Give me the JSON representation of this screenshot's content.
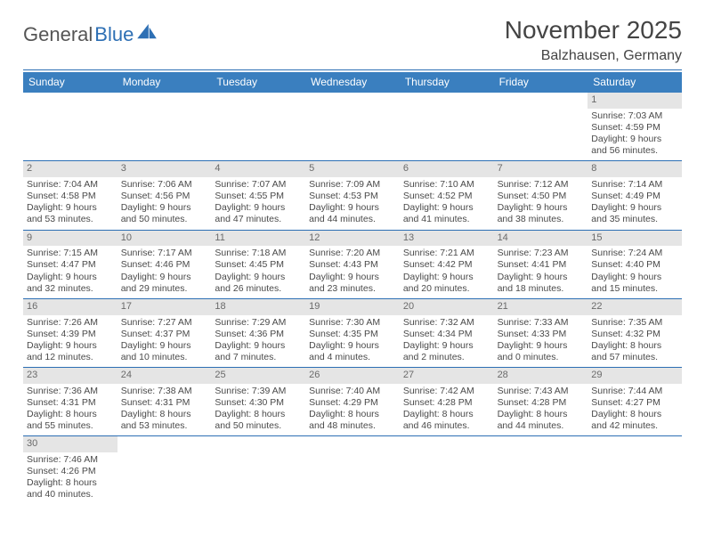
{
  "logo": {
    "word1": "General",
    "word2": "Blue"
  },
  "title": {
    "month": "November 2025",
    "location": "Balzhausen, Germany"
  },
  "colors": {
    "header_bg": "#3a7fbf",
    "border": "#2d6fb4",
    "daynum_bg": "#e5e5e5",
    "text": "#4a4a4a"
  },
  "dayNames": [
    "Sunday",
    "Monday",
    "Tuesday",
    "Wednesday",
    "Thursday",
    "Friday",
    "Saturday"
  ],
  "weeks": [
    [
      {
        "empty": true
      },
      {
        "empty": true
      },
      {
        "empty": true
      },
      {
        "empty": true
      },
      {
        "empty": true
      },
      {
        "empty": true
      },
      {
        "day": "1",
        "sunrise": "Sunrise: 7:03 AM",
        "sunset": "Sunset: 4:59 PM",
        "dl1": "Daylight: 9 hours",
        "dl2": "and 56 minutes."
      }
    ],
    [
      {
        "day": "2",
        "sunrise": "Sunrise: 7:04 AM",
        "sunset": "Sunset: 4:58 PM",
        "dl1": "Daylight: 9 hours",
        "dl2": "and 53 minutes."
      },
      {
        "day": "3",
        "sunrise": "Sunrise: 7:06 AM",
        "sunset": "Sunset: 4:56 PM",
        "dl1": "Daylight: 9 hours",
        "dl2": "and 50 minutes."
      },
      {
        "day": "4",
        "sunrise": "Sunrise: 7:07 AM",
        "sunset": "Sunset: 4:55 PM",
        "dl1": "Daylight: 9 hours",
        "dl2": "and 47 minutes."
      },
      {
        "day": "5",
        "sunrise": "Sunrise: 7:09 AM",
        "sunset": "Sunset: 4:53 PM",
        "dl1": "Daylight: 9 hours",
        "dl2": "and 44 minutes."
      },
      {
        "day": "6",
        "sunrise": "Sunrise: 7:10 AM",
        "sunset": "Sunset: 4:52 PM",
        "dl1": "Daylight: 9 hours",
        "dl2": "and 41 minutes."
      },
      {
        "day": "7",
        "sunrise": "Sunrise: 7:12 AM",
        "sunset": "Sunset: 4:50 PM",
        "dl1": "Daylight: 9 hours",
        "dl2": "and 38 minutes."
      },
      {
        "day": "8",
        "sunrise": "Sunrise: 7:14 AM",
        "sunset": "Sunset: 4:49 PM",
        "dl1": "Daylight: 9 hours",
        "dl2": "and 35 minutes."
      }
    ],
    [
      {
        "day": "9",
        "sunrise": "Sunrise: 7:15 AM",
        "sunset": "Sunset: 4:47 PM",
        "dl1": "Daylight: 9 hours",
        "dl2": "and 32 minutes."
      },
      {
        "day": "10",
        "sunrise": "Sunrise: 7:17 AM",
        "sunset": "Sunset: 4:46 PM",
        "dl1": "Daylight: 9 hours",
        "dl2": "and 29 minutes."
      },
      {
        "day": "11",
        "sunrise": "Sunrise: 7:18 AM",
        "sunset": "Sunset: 4:45 PM",
        "dl1": "Daylight: 9 hours",
        "dl2": "and 26 minutes."
      },
      {
        "day": "12",
        "sunrise": "Sunrise: 7:20 AM",
        "sunset": "Sunset: 4:43 PM",
        "dl1": "Daylight: 9 hours",
        "dl2": "and 23 minutes."
      },
      {
        "day": "13",
        "sunrise": "Sunrise: 7:21 AM",
        "sunset": "Sunset: 4:42 PM",
        "dl1": "Daylight: 9 hours",
        "dl2": "and 20 minutes."
      },
      {
        "day": "14",
        "sunrise": "Sunrise: 7:23 AM",
        "sunset": "Sunset: 4:41 PM",
        "dl1": "Daylight: 9 hours",
        "dl2": "and 18 minutes."
      },
      {
        "day": "15",
        "sunrise": "Sunrise: 7:24 AM",
        "sunset": "Sunset: 4:40 PM",
        "dl1": "Daylight: 9 hours",
        "dl2": "and 15 minutes."
      }
    ],
    [
      {
        "day": "16",
        "sunrise": "Sunrise: 7:26 AM",
        "sunset": "Sunset: 4:39 PM",
        "dl1": "Daylight: 9 hours",
        "dl2": "and 12 minutes."
      },
      {
        "day": "17",
        "sunrise": "Sunrise: 7:27 AM",
        "sunset": "Sunset: 4:37 PM",
        "dl1": "Daylight: 9 hours",
        "dl2": "and 10 minutes."
      },
      {
        "day": "18",
        "sunrise": "Sunrise: 7:29 AM",
        "sunset": "Sunset: 4:36 PM",
        "dl1": "Daylight: 9 hours",
        "dl2": "and 7 minutes."
      },
      {
        "day": "19",
        "sunrise": "Sunrise: 7:30 AM",
        "sunset": "Sunset: 4:35 PM",
        "dl1": "Daylight: 9 hours",
        "dl2": "and 4 minutes."
      },
      {
        "day": "20",
        "sunrise": "Sunrise: 7:32 AM",
        "sunset": "Sunset: 4:34 PM",
        "dl1": "Daylight: 9 hours",
        "dl2": "and 2 minutes."
      },
      {
        "day": "21",
        "sunrise": "Sunrise: 7:33 AM",
        "sunset": "Sunset: 4:33 PM",
        "dl1": "Daylight: 9 hours",
        "dl2": "and 0 minutes."
      },
      {
        "day": "22",
        "sunrise": "Sunrise: 7:35 AM",
        "sunset": "Sunset: 4:32 PM",
        "dl1": "Daylight: 8 hours",
        "dl2": "and 57 minutes."
      }
    ],
    [
      {
        "day": "23",
        "sunrise": "Sunrise: 7:36 AM",
        "sunset": "Sunset: 4:31 PM",
        "dl1": "Daylight: 8 hours",
        "dl2": "and 55 minutes."
      },
      {
        "day": "24",
        "sunrise": "Sunrise: 7:38 AM",
        "sunset": "Sunset: 4:31 PM",
        "dl1": "Daylight: 8 hours",
        "dl2": "and 53 minutes."
      },
      {
        "day": "25",
        "sunrise": "Sunrise: 7:39 AM",
        "sunset": "Sunset: 4:30 PM",
        "dl1": "Daylight: 8 hours",
        "dl2": "and 50 minutes."
      },
      {
        "day": "26",
        "sunrise": "Sunrise: 7:40 AM",
        "sunset": "Sunset: 4:29 PM",
        "dl1": "Daylight: 8 hours",
        "dl2": "and 48 minutes."
      },
      {
        "day": "27",
        "sunrise": "Sunrise: 7:42 AM",
        "sunset": "Sunset: 4:28 PM",
        "dl1": "Daylight: 8 hours",
        "dl2": "and 46 minutes."
      },
      {
        "day": "28",
        "sunrise": "Sunrise: 7:43 AM",
        "sunset": "Sunset: 4:28 PM",
        "dl1": "Daylight: 8 hours",
        "dl2": "and 44 minutes."
      },
      {
        "day": "29",
        "sunrise": "Sunrise: 7:44 AM",
        "sunset": "Sunset: 4:27 PM",
        "dl1": "Daylight: 8 hours",
        "dl2": "and 42 minutes."
      }
    ],
    [
      {
        "day": "30",
        "sunrise": "Sunrise: 7:46 AM",
        "sunset": "Sunset: 4:26 PM",
        "dl1": "Daylight: 8 hours",
        "dl2": "and 40 minutes."
      },
      {
        "empty": true
      },
      {
        "empty": true
      },
      {
        "empty": true
      },
      {
        "empty": true
      },
      {
        "empty": true
      },
      {
        "empty": true
      }
    ]
  ]
}
